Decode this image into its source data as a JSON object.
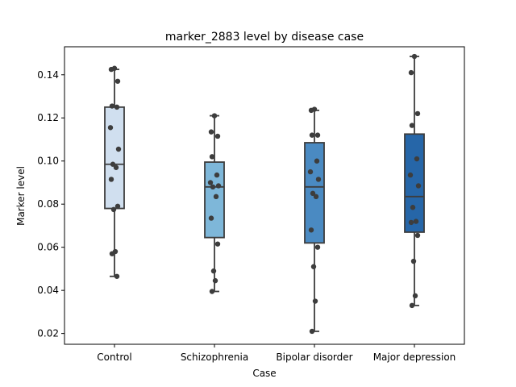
{
  "chart_data": {
    "type": "box",
    "title": "marker_2883 level by disease case",
    "xlabel": "Case",
    "ylabel": "Marker level",
    "ylim": [
      0.015,
      0.153
    ],
    "yticks": [
      0.02,
      0.04,
      0.06,
      0.08,
      0.1,
      0.12,
      0.14
    ],
    "ytick_labels": [
      "0.02",
      "0.04",
      "0.06",
      "0.08",
      "0.10",
      "0.12",
      "0.14"
    ],
    "grid": false,
    "categories": [
      "Control",
      "Schizophrenia",
      "Bipolar disorder",
      "Major depression"
    ],
    "colors": [
      "#d0dfef",
      "#7eb7d9",
      "#4a8ac2",
      "#2666a8"
    ],
    "edge_color": "#3d3d3d",
    "point_color": "#3d3d3d",
    "boxes": [
      {
        "whisker_low": 0.0465,
        "q1": 0.078,
        "median": 0.0985,
        "q3": 0.125,
        "whisker_high": 0.1425
      },
      {
        "whisker_low": 0.0395,
        "q1": 0.0645,
        "median": 0.088,
        "q3": 0.0995,
        "whisker_high": 0.121
      },
      {
        "whisker_low": 0.021,
        "q1": 0.062,
        "median": 0.088,
        "q3": 0.1085,
        "whisker_high": 0.1235
      },
      {
        "whisker_low": 0.033,
        "q1": 0.067,
        "median": 0.0835,
        "q3": 0.1125,
        "whisker_high": 0.1485
      }
    ],
    "points": [
      [
        0.143,
        0.1425,
        0.137,
        0.1255,
        0.125,
        0.1155,
        0.1055,
        0.0985,
        0.097,
        0.0915,
        0.079,
        0.0775,
        0.058,
        0.057,
        0.0465
      ],
      [
        0.121,
        0.1135,
        0.1115,
        0.102,
        0.0935,
        0.09,
        0.0885,
        0.088,
        0.0835,
        0.0735,
        0.0615,
        0.049,
        0.0445,
        0.0395
      ],
      [
        0.124,
        0.1235,
        0.112,
        0.112,
        0.1,
        0.095,
        0.0915,
        0.085,
        0.0835,
        0.068,
        0.06,
        0.051,
        0.035,
        0.021
      ],
      [
        0.1485,
        0.141,
        0.122,
        0.1165,
        0.101,
        0.0935,
        0.0885,
        0.0785,
        0.072,
        0.0715,
        0.0655,
        0.0535,
        0.0375,
        0.033
      ]
    ]
  }
}
